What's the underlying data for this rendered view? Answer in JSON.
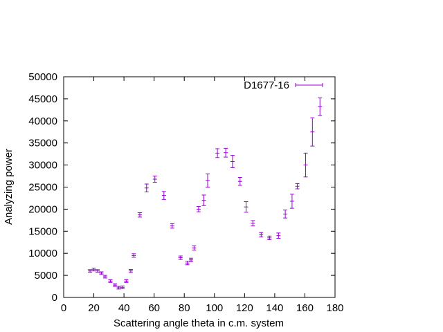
{
  "chart_data": {
    "type": "scatter",
    "title": "",
    "xlabel": "Scattering angle theta in c.m. system",
    "ylabel": "Analyzing power",
    "xlim": [
      0,
      180
    ],
    "ylim": [
      0,
      50000
    ],
    "xticks": [
      0,
      20,
      40,
      60,
      80,
      100,
      120,
      140,
      160,
      180
    ],
    "yticks": [
      0,
      5000,
      10000,
      15000,
      20000,
      25000,
      30000,
      35000,
      40000,
      45000,
      50000
    ],
    "grid": false,
    "legend": {
      "position": "top-right"
    },
    "series": [
      {
        "name": "D1677-16",
        "color": "#9400d3",
        "style": "points with y error bars",
        "points": [
          {
            "x": 17.5,
            "y": 6000,
            "err": 300
          },
          {
            "x": 20,
            "y": 6300,
            "err": 300
          },
          {
            "x": 22.5,
            "y": 6000,
            "err": 300
          },
          {
            "x": 25,
            "y": 5500,
            "err": 300
          },
          {
            "x": 27.5,
            "y": 4700,
            "err": 300
          },
          {
            "x": 31,
            "y": 3700,
            "err": 300
          },
          {
            "x": 34,
            "y": 2800,
            "err": 300
          },
          {
            "x": 36.5,
            "y": 2200,
            "err": 300
          },
          {
            "x": 39,
            "y": 2300,
            "err": 300
          },
          {
            "x": 41.5,
            "y": 3700,
            "err": 300
          },
          {
            "x": 44.5,
            "y": 6000,
            "err": 350
          },
          {
            "x": 46.5,
            "y": 9500,
            "err": 400
          },
          {
            "x": 50.5,
            "y": 18700,
            "err": 500
          },
          {
            "x": 55,
            "y": 24800,
            "err": 900
          },
          {
            "x": 60.5,
            "y": 26800,
            "err": 700
          },
          {
            "x": 66.5,
            "y": 23100,
            "err": 900
          },
          {
            "x": 72,
            "y": 16200,
            "err": 500
          },
          {
            "x": 77.5,
            "y": 9000,
            "err": 400
          },
          {
            "x": 82,
            "y": 7800,
            "err": 400
          },
          {
            "x": 84.5,
            "y": 8500,
            "err": 400
          },
          {
            "x": 86.5,
            "y": 11200,
            "err": 500
          },
          {
            "x": 89.5,
            "y": 20000,
            "err": 600
          },
          {
            "x": 93,
            "y": 22000,
            "err": 1200
          },
          {
            "x": 95.5,
            "y": 26500,
            "err": 1500
          },
          {
            "x": 102,
            "y": 32700,
            "err": 1000
          },
          {
            "x": 107.5,
            "y": 32800,
            "err": 1000
          },
          {
            "x": 112,
            "y": 30800,
            "err": 1400
          },
          {
            "x": 117,
            "y": 26300,
            "err": 900
          },
          {
            "x": 121,
            "y": 20500,
            "err": 1200
          },
          {
            "x": 125.5,
            "y": 16800,
            "err": 600
          },
          {
            "x": 131,
            "y": 14200,
            "err": 500
          },
          {
            "x": 136.5,
            "y": 13500,
            "err": 400
          },
          {
            "x": 142.5,
            "y": 14000,
            "err": 600
          },
          {
            "x": 147,
            "y": 18900,
            "err": 900
          },
          {
            "x": 151.5,
            "y": 21800,
            "err": 1600
          },
          {
            "x": 155,
            "y": 25200,
            "err": 600
          },
          {
            "x": 160.5,
            "y": 30000,
            "err": 2700
          },
          {
            "x": 165,
            "y": 37500,
            "err": 3200
          },
          {
            "x": 170,
            "y": 43200,
            "err": 2000
          }
        ]
      }
    ]
  }
}
